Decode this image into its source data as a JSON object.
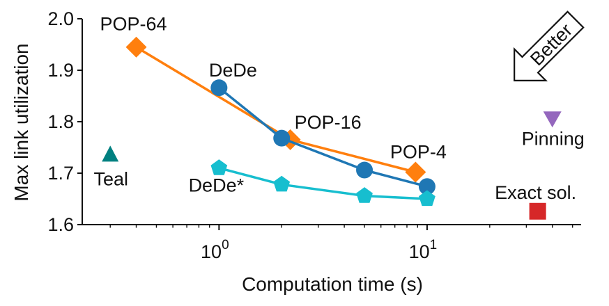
{
  "chart_data": {
    "type": "scatter",
    "title": "",
    "xlabel": "Computation time (s)",
    "ylabel": "Max link utilization",
    "xscale": "log",
    "xlim": [
      0.22,
      55
    ],
    "ylim": [
      1.6,
      2.0
    ],
    "yticks": [
      {
        "value": 1.6,
        "label": "1.6"
      },
      {
        "value": 1.7,
        "label": "1.7"
      },
      {
        "value": 1.8,
        "label": "1.8"
      },
      {
        "value": 1.9,
        "label": "1.9"
      },
      {
        "value": 2.0,
        "label": "2.0"
      }
    ],
    "xticks": [
      {
        "value": 1,
        "base": "10",
        "exp": "0"
      },
      {
        "value": 10,
        "base": "10",
        "exp": "1"
      }
    ],
    "series": [
      {
        "name": "POP",
        "color": "#ff7f0e",
        "marker": "diamond",
        "line": true,
        "points": [
          {
            "x": 0.4,
            "y": 1.945
          },
          {
            "x": 2.2,
            "y": 1.765
          },
          {
            "x": 8.8,
            "y": 1.702
          }
        ]
      },
      {
        "name": "DeDe",
        "color": "#1f77b4",
        "marker": "circle",
        "line": true,
        "points": [
          {
            "x": 1.0,
            "y": 1.866
          },
          {
            "x": 2.0,
            "y": 1.768
          },
          {
            "x": 5.0,
            "y": 1.706
          },
          {
            "x": 10.0,
            "y": 1.674
          }
        ]
      },
      {
        "name": "DeDe*",
        "color": "#17becf",
        "marker": "pentagon",
        "line": true,
        "points": [
          {
            "x": 1.0,
            "y": 1.71
          },
          {
            "x": 2.0,
            "y": 1.678
          },
          {
            "x": 5.0,
            "y": 1.656
          },
          {
            "x": 10.0,
            "y": 1.65
          }
        ]
      },
      {
        "name": "Teal",
        "color": "#008080",
        "marker": "triangle-up",
        "line": false,
        "points": [
          {
            "x": 0.3,
            "y": 1.736
          }
        ]
      },
      {
        "name": "Pinning",
        "color": "#9467bd",
        "marker": "triangle-down",
        "line": false,
        "points": [
          {
            "x": 40.0,
            "y": 1.805
          }
        ]
      },
      {
        "name": "Exact sol.",
        "color": "#d62728",
        "marker": "square",
        "line": false,
        "points": [
          {
            "x": 34.0,
            "y": 1.626
          }
        ]
      }
    ],
    "annotations": [
      {
        "text": "POP-64",
        "x": 0.4,
        "y": 1.945,
        "anchor": "pop-64"
      },
      {
        "text": "DeDe",
        "x": 1.0,
        "y": 1.866,
        "anchor": "dede"
      },
      {
        "text": "POP-16",
        "x": 2.2,
        "y": 1.765,
        "anchor": "pop-16"
      },
      {
        "text": "POP-4",
        "x": 8.8,
        "y": 1.702,
        "anchor": "pop-4"
      },
      {
        "text": "DeDe*",
        "x": 1.0,
        "y": 1.71,
        "anchor": "dede-star"
      },
      {
        "text": "Teal",
        "x": 0.3,
        "y": 1.736,
        "anchor": "teal"
      },
      {
        "text": "Pinning",
        "x": 40.0,
        "y": 1.805,
        "anchor": "pinning"
      },
      {
        "text": "Exact sol.",
        "x": 34.0,
        "y": 1.626,
        "anchor": "exact"
      }
    ],
    "better_label": "Better"
  }
}
